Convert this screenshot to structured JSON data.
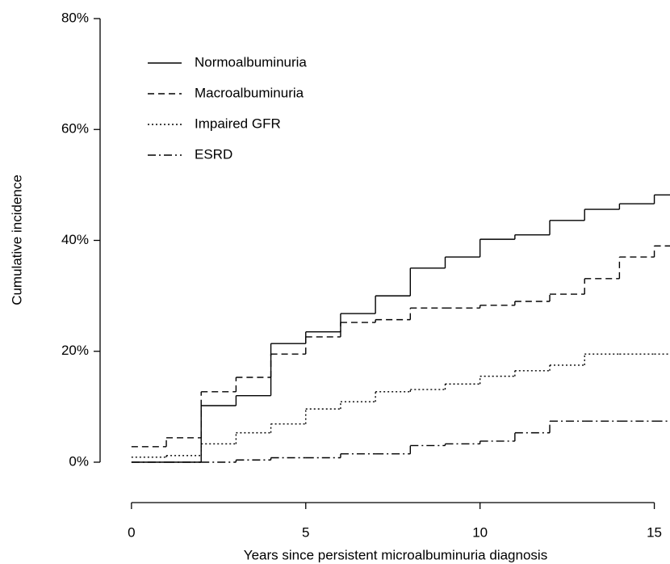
{
  "chart_data": {
    "type": "step",
    "x_label": "Years since persistent microalbuminuria diagnosis",
    "y_label": "Cumulative incidence",
    "x": [
      0,
      1,
      2,
      3,
      4,
      5,
      6,
      7,
      8,
      9,
      10,
      11,
      12,
      13,
      14,
      15
    ],
    "xlim": [
      -0.9,
      15.45
    ],
    "xticks": [
      0,
      5,
      10,
      15
    ],
    "ylim": [
      0,
      80
    ],
    "yticks": [
      {
        "value": 0,
        "label": "0%"
      },
      {
        "value": 20,
        "label": "20%"
      },
      {
        "value": 40,
        "label": "40%"
      },
      {
        "value": 60,
        "label": "60%"
      },
      {
        "value": 80,
        "label": "80%"
      }
    ],
    "series": [
      {
        "name": "Normoalbuminuria",
        "color": "#000000",
        "dash": "solid",
        "values": [
          0,
          0,
          10.2,
          12,
          21.4,
          23.5,
          26.8,
          30,
          35,
          37,
          40.2,
          41,
          43.6,
          45.6,
          46.6,
          48.2
        ]
      },
      {
        "name": "Macroalbuminuria",
        "color": "#000000",
        "dash": "dashed",
        "values": [
          2.8,
          4.4,
          12.7,
          15.3,
          19.5,
          22.6,
          25.2,
          25.7,
          27.8,
          27.8,
          28.3,
          29,
          30.3,
          33.1,
          37,
          39
        ]
      },
      {
        "name": "Impaired GFR",
        "color": "#000000",
        "dash": "dotted",
        "values": [
          0.9,
          1.2,
          3.3,
          5.3,
          6.9,
          9.6,
          10.9,
          12.7,
          13.1,
          14.1,
          15.5,
          16.5,
          17.5,
          19.5,
          19.5,
          19.5
        ]
      },
      {
        "name": "ESRD",
        "color": "#000000",
        "dash": "dashdot",
        "values": [
          0,
          0,
          0,
          0.4,
          0.8,
          0.8,
          1.5,
          1.5,
          3,
          3.3,
          3.8,
          5.3,
          7.4,
          7.4,
          7.4,
          7.4
        ]
      }
    ],
    "legend_position": "upper left"
  }
}
